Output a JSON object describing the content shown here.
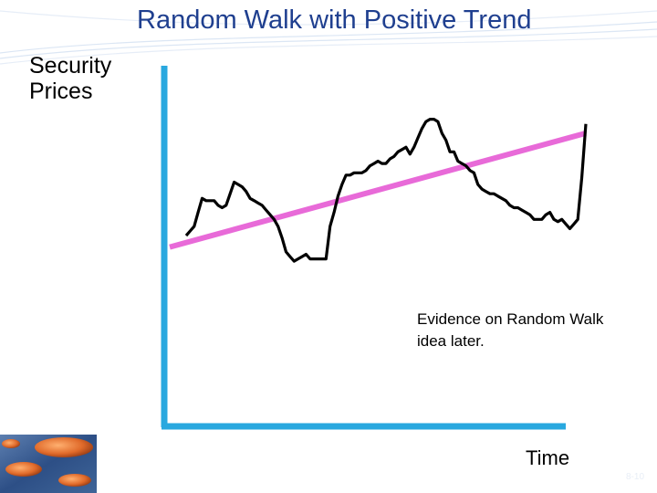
{
  "slide": {
    "title": "Random Walk with Positive Trend",
    "ylabel": "Security Prices",
    "xlabel": "Time",
    "annotation": "Evidence on Random Walk idea later.",
    "page_number": "8-10"
  },
  "colors": {
    "title": "#1f3f8f",
    "axes": "#29a8df",
    "price_line": "#000000",
    "trend_line": "#e86ad8",
    "decor_lines": "#dbe6f4"
  },
  "chart_data": {
    "type": "line",
    "title": "Random Walk with Positive Trend",
    "xlabel": "Time",
    "ylabel": "Security Prices",
    "axis_ticks": false,
    "grid": false,
    "xlim": [
      0,
      100
    ],
    "ylim": [
      0,
      100
    ],
    "annotations": [
      "Evidence on Random Walk idea later."
    ],
    "series": [
      {
        "style": "random walk",
        "x": [
          0,
          1,
          2,
          3,
          4,
          5,
          6,
          7,
          8,
          9,
          10,
          11,
          12,
          13,
          14,
          15,
          16,
          17,
          18,
          19,
          20,
          21,
          22,
          23,
          24,
          25,
          26,
          27,
          28,
          29,
          30,
          31,
          32,
          33,
          34,
          35,
          36,
          37,
          38,
          39,
          40,
          41,
          42,
          43,
          44,
          45,
          46,
          47,
          48,
          49,
          50,
          51,
          52,
          53,
          54,
          55,
          56,
          57,
          58,
          59,
          60,
          61,
          62,
          63,
          64,
          65,
          66,
          67,
          68,
          69,
          70,
          71,
          72,
          73,
          74,
          75,
          76,
          77,
          78,
          79,
          80,
          81,
          82,
          83,
          84,
          85,
          86,
          87,
          88,
          89,
          90,
          91,
          92,
          93,
          94,
          95,
          96,
          97,
          98,
          99,
          100
        ],
        "y": [
          38,
          40,
          42,
          48,
          54,
          53,
          53,
          53,
          51,
          50,
          51,
          56,
          61,
          60,
          59,
          57,
          54,
          53,
          52,
          51,
          49,
          47,
          45,
          42,
          37,
          31,
          29,
          27,
          28,
          29,
          30,
          28,
          28,
          28,
          28,
          28,
          42,
          48,
          55,
          60,
          64,
          64,
          65,
          65,
          65,
          66,
          68,
          69,
          70,
          69,
          69,
          71,
          72,
          74,
          75,
          76,
          73,
          76,
          80,
          84,
          87,
          88,
          88,
          87,
          82,
          79,
          74,
          74,
          70,
          69,
          68,
          66,
          65,
          60,
          58,
          57,
          56,
          56,
          55,
          54,
          53,
          51,
          50,
          50,
          49,
          48,
          47,
          45,
          45,
          45,
          47,
          48,
          45,
          44,
          45,
          43,
          41,
          43,
          45,
          63,
          86
        ]
      },
      {
        "style": "linear trend",
        "x": [
          0,
          100
        ],
        "y": [
          35,
          82
        ]
      }
    ]
  }
}
